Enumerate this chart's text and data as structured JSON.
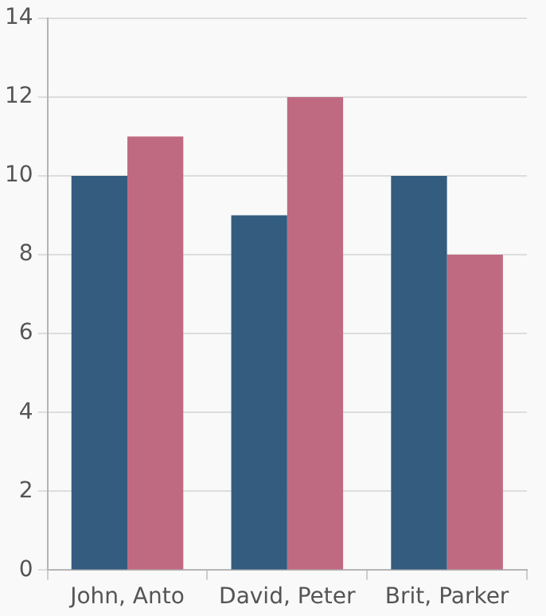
{
  "chart_data": {
    "type": "bar",
    "categories": [
      "John, Anto",
      "David, Peter",
      "Brit, Parker"
    ],
    "series": [
      {
        "color": "#335c7f",
        "values": [
          10,
          9,
          10
        ]
      },
      {
        "color": "#c06a82",
        "values": [
          11,
          12,
          8
        ]
      }
    ],
    "ylim": [
      0,
      14
    ],
    "yticks": [
      0,
      2,
      4,
      6,
      8,
      10,
      12,
      14
    ],
    "grid": "y",
    "legend": false
  }
}
